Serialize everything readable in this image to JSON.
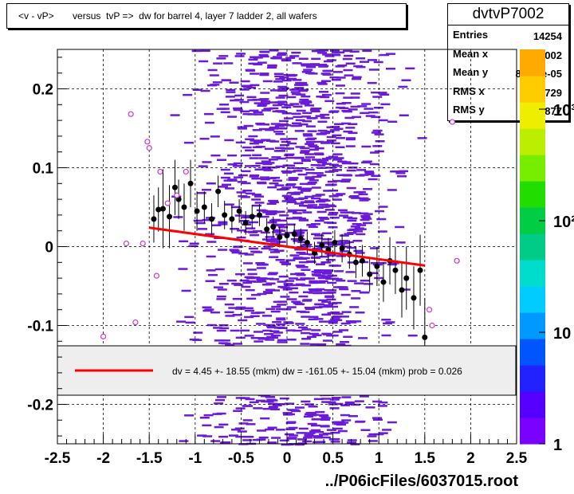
{
  "header": {
    "title": "<v - vP>       versus  tvP =>  dw for barrel 4, layer 7 ladder 2, all wafers"
  },
  "stats": {
    "name": "dvtvP7002",
    "rows": [
      {
        "label": "Entries",
        "value": "14254"
      },
      {
        "label": "Mean x",
        "value": "-0.2002"
      },
      {
        "label": "Mean y",
        "value": "8.334e-05"
      },
      {
        "label": "RMS x",
        "value": "0.6729"
      },
      {
        "label": "RMS y",
        "value": "0.08877"
      }
    ]
  },
  "legend": {
    "text": "dv =    4.45 +- 18.55 (mkm) dw = -161.05 +- 15.04 (mkm) prob = 0.026",
    "line_color": "#ff0000"
  },
  "footer": {
    "filename": "../P06icFiles/6037015.root"
  },
  "colors": {
    "density_cell": "#6a1bd8",
    "profile_marker": "#000000",
    "open_marker": "#cc33cc",
    "fit_line": "#ff0000"
  },
  "chart_data": {
    "type": "scatter",
    "xlim": [
      -2.5,
      2.5
    ],
    "ylim": [
      -0.25,
      0.25
    ],
    "x_ticks": [
      "-2.5",
      "-2",
      "-1.5",
      "-1",
      "-0.5",
      "0",
      "0.5",
      "1",
      "1.5",
      "2",
      "2.5"
    ],
    "y_ticks": [
      "-0.2",
      "-0.1",
      "0",
      "0.1",
      "0.2"
    ],
    "grid": true,
    "colorbar": {
      "labels": [
        "1",
        "10",
        "10²",
        "10³"
      ],
      "colors": [
        "#7a00ff",
        "#5500ff",
        "#2222ff",
        "#0055ff",
        "#0099ff",
        "#00ccff",
        "#00ddcc",
        "#00cc88",
        "#00cc44",
        "#22dd00",
        "#77ee00",
        "#bbee00",
        "#eeee00",
        "#ffcc00",
        "#ffaa00"
      ]
    },
    "fit_line": {
      "x": [
        -1.5,
        1.5
      ],
      "y": [
        0.024,
        -0.024
      ]
    },
    "profile_points": [
      {
        "x": -1.45,
        "y": 0.035,
        "err": 0.03
      },
      {
        "x": -1.4,
        "y": 0.047,
        "err": 0.028
      },
      {
        "x": -1.35,
        "y": 0.048,
        "err": 0.05
      },
      {
        "x": -1.28,
        "y": 0.038,
        "err": 0.04
      },
      {
        "x": -1.22,
        "y": 0.075,
        "err": 0.035
      },
      {
        "x": -1.18,
        "y": 0.06,
        "err": 0.025
      },
      {
        "x": -1.12,
        "y": 0.05,
        "err": 0.03
      },
      {
        "x": -1.05,
        "y": 0.08,
        "err": 0.03
      },
      {
        "x": -0.98,
        "y": 0.045,
        "err": 0.025
      },
      {
        "x": -0.9,
        "y": 0.05,
        "err": 0.02
      },
      {
        "x": -0.82,
        "y": 0.035,
        "err": 0.02
      },
      {
        "x": -0.75,
        "y": 0.07,
        "err": 0.02
      },
      {
        "x": -0.68,
        "y": 0.04,
        "err": 0.018
      },
      {
        "x": -0.6,
        "y": 0.035,
        "err": 0.018
      },
      {
        "x": -0.52,
        "y": 0.045,
        "err": 0.015
      },
      {
        "x": -0.45,
        "y": 0.03,
        "err": 0.015
      },
      {
        "x": -0.38,
        "y": 0.038,
        "err": 0.015
      },
      {
        "x": -0.3,
        "y": 0.04,
        "err": 0.014
      },
      {
        "x": -0.22,
        "y": 0.022,
        "err": 0.014
      },
      {
        "x": -0.15,
        "y": 0.025,
        "err": 0.013
      },
      {
        "x": -0.08,
        "y": 0.012,
        "err": 0.013
      },
      {
        "x": 0.0,
        "y": 0.014,
        "err": 0.013
      },
      {
        "x": 0.08,
        "y": 0.016,
        "err": 0.013
      },
      {
        "x": 0.15,
        "y": 0.01,
        "err": 0.013
      },
      {
        "x": 0.22,
        "y": 0.005,
        "err": 0.014
      },
      {
        "x": 0.3,
        "y": -0.008,
        "err": 0.014
      },
      {
        "x": 0.38,
        "y": 0.002,
        "err": 0.015
      },
      {
        "x": 0.45,
        "y": -0.004,
        "err": 0.015
      },
      {
        "x": 0.52,
        "y": 0.005,
        "err": 0.016
      },
      {
        "x": 0.6,
        "y": -0.002,
        "err": 0.018
      },
      {
        "x": 0.68,
        "y": -0.01,
        "err": 0.018
      },
      {
        "x": 0.75,
        "y": -0.02,
        "err": 0.02
      },
      {
        "x": 0.82,
        "y": -0.018,
        "err": 0.02
      },
      {
        "x": 0.9,
        "y": -0.035,
        "err": 0.022
      },
      {
        "x": 0.98,
        "y": -0.025,
        "err": 0.025
      },
      {
        "x": 1.05,
        "y": -0.045,
        "err": 0.025
      },
      {
        "x": 1.12,
        "y": -0.018,
        "err": 0.03
      },
      {
        "x": 1.18,
        "y": -0.03,
        "err": 0.03
      },
      {
        "x": 1.25,
        "y": -0.055,
        "err": 0.035
      },
      {
        "x": 1.3,
        "y": -0.04,
        "err": 0.04
      },
      {
        "x": 1.38,
        "y": -0.065,
        "err": 0.04
      },
      {
        "x": 1.45,
        "y": -0.03,
        "err": 0.045
      },
      {
        "x": 1.5,
        "y": -0.115,
        "err": 0.05
      }
    ],
    "open_points": [
      {
        "x": -2.0,
        "y": -0.114
      },
      {
        "x": -1.75,
        "y": 0.004
      },
      {
        "x": -1.7,
        "y": 0.168
      },
      {
        "x": -1.65,
        "y": -0.096
      },
      {
        "x": -1.57,
        "y": 0.004
      },
      {
        "x": -1.52,
        "y": 0.133
      },
      {
        "x": -1.5,
        "y": 0.125
      },
      {
        "x": -1.42,
        "y": -0.037
      },
      {
        "x": -1.38,
        "y": 0.095
      },
      {
        "x": -1.3,
        "y": 0.055
      },
      {
        "x": -1.2,
        "y": 0.065
      },
      {
        "x": -1.1,
        "y": 0.095
      },
      {
        "x": 1.55,
        "y": -0.08
      },
      {
        "x": 1.58,
        "y": -0.1
      },
      {
        "x": 1.85,
        "y": -0.018
      },
      {
        "x": 1.8,
        "y": 0.158
      }
    ]
  }
}
